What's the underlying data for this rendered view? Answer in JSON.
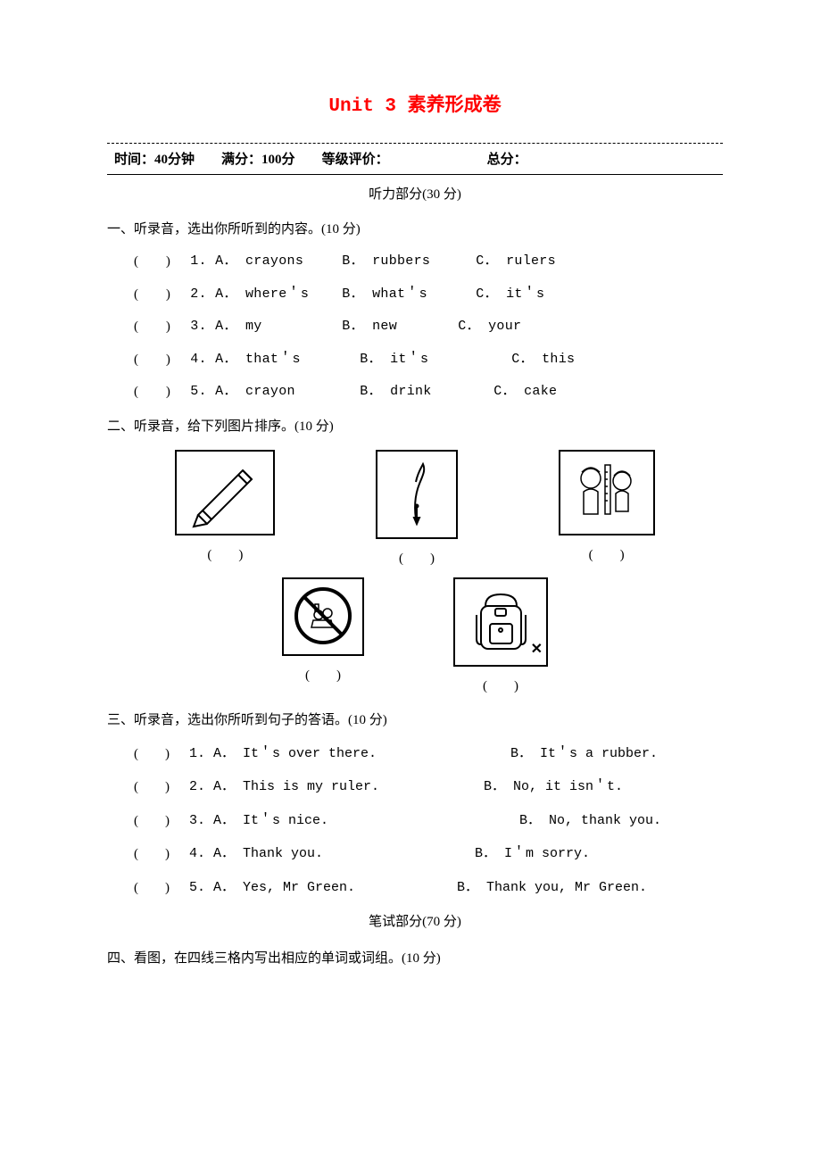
{
  "title": "Unit 3 素养形成卷",
  "header": {
    "time_label": "时间：",
    "time_value": "40分钟",
    "full_label": "满分：",
    "full_value": "100分",
    "grade_label": "等级评价：",
    "total_label": "总分："
  },
  "listening_header": "听力部分(30 分)",
  "section1": {
    "title": "一、听录音，选出你所听到的内容。(10 分)",
    "paren": "(　　)",
    "rows": [
      {
        "n": "1.",
        "a": "A． crayons",
        "b": "B． rubbers",
        "c": "C． rulers"
      },
      {
        "n": "2.",
        "a": "A． where＇s",
        "b": "B． what＇s",
        "c": "C． it＇s"
      },
      {
        "n": "3.",
        "a": "A． my",
        "b": "B． new",
        "c": "C． your"
      },
      {
        "n": "4.",
        "a": "A． that＇s",
        "b": "B． it＇s",
        "c": "C． this"
      },
      {
        "n": "5.",
        "a": "A． crayon",
        "b": "B． drink",
        "c": "C． cake"
      }
    ]
  },
  "section2": {
    "title": "二、听录音，给下列图片排序。(10 分)",
    "paren": "(　　)",
    "images": {
      "row1": [
        "pencil",
        "pen",
        "kids-ruler"
      ],
      "row2": [
        "no-food",
        "schoolbag-x"
      ]
    },
    "sizes": {
      "row1": [
        {
          "w": 112,
          "h": 96
        },
        {
          "w": 92,
          "h": 100
        },
        {
          "w": 108,
          "h": 96
        }
      ],
      "row2": [
        {
          "w": 92,
          "h": 88
        },
        {
          "w": 106,
          "h": 100
        }
      ]
    }
  },
  "section3": {
    "title": "三、听录音，选出你所听到句子的答语。(10 分)",
    "paren": "(　　)",
    "rows": [
      {
        "n": "1.",
        "a": "A． It＇s over there.",
        "b": "B． It＇s a rubber."
      },
      {
        "n": "2.",
        "a": "A． This is my ruler.",
        "b": "B． No, it isn＇t."
      },
      {
        "n": "3.",
        "a": "A． It＇s nice.",
        "b": "B． No, thank you."
      },
      {
        "n": "4.",
        "a": "A． Thank you.",
        "b": "B． I＇m sorry."
      },
      {
        "n": "5.",
        "a": "A． Yes, Mr Green.",
        "b": "B． Thank you, Mr Green."
      }
    ]
  },
  "written_header": "笔试部分(70 分)",
  "section4": {
    "title": "四、看图，在四线三格内写出相应的单词或词组。(10 分)"
  },
  "colors": {
    "title": "#ff0000",
    "text": "#000000",
    "background": "#ffffff",
    "border": "#000000"
  }
}
